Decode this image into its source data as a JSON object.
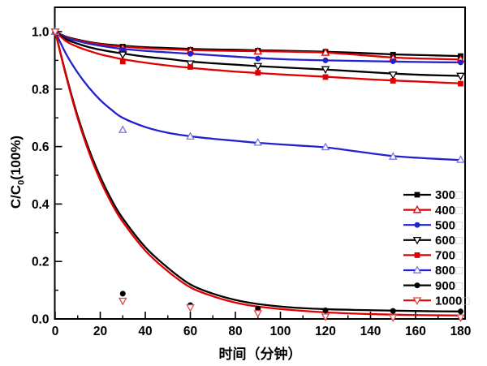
{
  "figure": {
    "xlabel": "时间（分钟）",
    "ylabel_prefix": "C/C",
    "ylabel_sub": "0",
    "ylabel_suffix": "(100%)"
  },
  "chart_data": {
    "type": "line",
    "title": "",
    "xlabel": "时间（分钟）",
    "ylabel": "C/C0(100%)",
    "xlim": [
      0,
      182
    ],
    "ylim": [
      0,
      1.08
    ],
    "grid": false,
    "legend_position": "right-middle",
    "x_ticks": [
      0,
      20,
      40,
      60,
      80,
      100,
      120,
      140,
      160,
      180
    ],
    "x_tick_labels": [
      "0",
      "20",
      "40",
      "60",
      "80",
      "100",
      "120",
      "140",
      "160",
      "180"
    ],
    "x_minor_ticks": [
      10,
      30,
      50,
      70,
      90,
      110,
      130,
      150,
      170
    ],
    "y_ticks": [
      0.0,
      0.2,
      0.4,
      0.6,
      0.8,
      1.0
    ],
    "y_tick_labels": [
      "0.0",
      "0.2",
      "0.4",
      "0.6",
      "0.8",
      "1.0"
    ],
    "y_minor_ticks": [
      0.1,
      0.3,
      0.5,
      0.7,
      0.9
    ],
    "x_curve": [
      0,
      5,
      10,
      15,
      20,
      25,
      30,
      40,
      50,
      60,
      70,
      80,
      90,
      105,
      120,
      135,
      150,
      165,
      180
    ],
    "x_markers": [
      0,
      30,
      60,
      90,
      120,
      150,
      180
    ],
    "colors": {
      "black": "#000000",
      "red": "#e00000",
      "blue": "#2222cc",
      "light_blue": "#7878e0",
      "light_red": "#e04848",
      "legend_box_gray": "#c2c2c2"
    },
    "series": [
      {
        "name": "300",
        "suffix": "□",
        "color": "#000000",
        "marker": "square-filled",
        "marker_color": "#000000",
        "curve": [
          1.0,
          0.982,
          0.972,
          0.964,
          0.958,
          0.954,
          0.951,
          0.946,
          0.943,
          0.94,
          0.938,
          0.937,
          0.935,
          0.933,
          0.93,
          0.926,
          0.921,
          0.918,
          0.915
        ],
        "markers": [
          1.0,
          0.948,
          0.937,
          0.934,
          0.93,
          0.92,
          0.915
        ]
      },
      {
        "name": "400",
        "suffix": "□",
        "color": "#e00000",
        "marker": "triangle-up-open",
        "marker_color": "#e00000",
        "curve": [
          1.0,
          0.98,
          0.97,
          0.962,
          0.956,
          0.951,
          0.948,
          0.942,
          0.939,
          0.936,
          0.934,
          0.933,
          0.932,
          0.93,
          0.927,
          0.919,
          0.91,
          0.906,
          0.903
        ],
        "markers": [
          1.0,
          0.942,
          0.933,
          0.931,
          0.927,
          0.907,
          0.903
        ]
      },
      {
        "name": "500",
        "suffix": "□",
        "color": "#2222cc",
        "marker": "circle-filled",
        "marker_color": "#2222cc",
        "curve": [
          1.0,
          0.978,
          0.967,
          0.958,
          0.951,
          0.945,
          0.94,
          0.933,
          0.928,
          0.923,
          0.918,
          0.913,
          0.908,
          0.903,
          0.9,
          0.898,
          0.896,
          0.894,
          0.893
        ],
        "markers": [
          1.0,
          0.936,
          0.923,
          0.906,
          0.9,
          0.897,
          0.893
        ]
      },
      {
        "name": "600",
        "suffix": "□",
        "color": "#000000",
        "marker": "triangle-down-open",
        "marker_color": "#000000",
        "curve": [
          1.0,
          0.973,
          0.958,
          0.946,
          0.937,
          0.93,
          0.924,
          0.913,
          0.905,
          0.896,
          0.89,
          0.885,
          0.88,
          0.874,
          0.868,
          0.861,
          0.854,
          0.849,
          0.846
        ],
        "markers": [
          1.0,
          0.92,
          0.889,
          0.88,
          0.869,
          0.85,
          0.846
        ]
      },
      {
        "name": "700",
        "suffix": "□",
        "color": "#e00000",
        "marker": "square-filled",
        "marker_color": "#e00000",
        "curve": [
          1.0,
          0.966,
          0.947,
          0.933,
          0.921,
          0.912,
          0.904,
          0.892,
          0.882,
          0.874,
          0.867,
          0.861,
          0.856,
          0.849,
          0.843,
          0.836,
          0.83,
          0.825,
          0.82
        ],
        "markers": [
          1.0,
          0.896,
          0.877,
          0.857,
          0.842,
          0.829,
          0.819
        ]
      },
      {
        "name": "800",
        "suffix": "□",
        "color": "#2222cc",
        "marker": "triangle-up-open",
        "marker_color": "#7878e0",
        "curve": [
          1.0,
          0.92,
          0.857,
          0.805,
          0.762,
          0.728,
          0.7,
          0.668,
          0.648,
          0.636,
          0.627,
          0.62,
          0.613,
          0.605,
          0.597,
          0.582,
          0.567,
          0.559,
          0.553
        ],
        "markers": [
          1.0,
          0.658,
          0.635,
          0.614,
          0.598,
          0.565,
          0.554
        ]
      },
      {
        "name": "900",
        "suffix": "□",
        "color": "#000000",
        "marker": "circle-filled",
        "marker_color": "#000000",
        "curve": [
          1.0,
          0.845,
          0.705,
          0.59,
          0.495,
          0.415,
          0.35,
          0.25,
          0.178,
          0.12,
          0.088,
          0.066,
          0.052,
          0.04,
          0.034,
          0.031,
          0.029,
          0.027,
          0.026
        ],
        "markers": [
          1.0,
          0.088,
          0.048,
          0.036,
          0.03,
          0.028,
          0.026
        ]
      },
      {
        "name": "1000",
        "suffix": "□",
        "color": "#e00000",
        "marker": "triangle-down-open",
        "marker_color": "#e04848",
        "curve": [
          1.0,
          0.84,
          0.698,
          0.58,
          0.483,
          0.403,
          0.338,
          0.238,
          0.166,
          0.11,
          0.079,
          0.057,
          0.043,
          0.031,
          0.023,
          0.018,
          0.015,
          0.013,
          0.012
        ],
        "markers": [
          1.0,
          0.063,
          0.04,
          0.02,
          0.008,
          0.005,
          0.005
        ]
      }
    ],
    "legend": {
      "x_line_start": 497,
      "x_line_end": 531,
      "x_text": 536,
      "y_start": 240,
      "row_step": 18.6
    }
  }
}
